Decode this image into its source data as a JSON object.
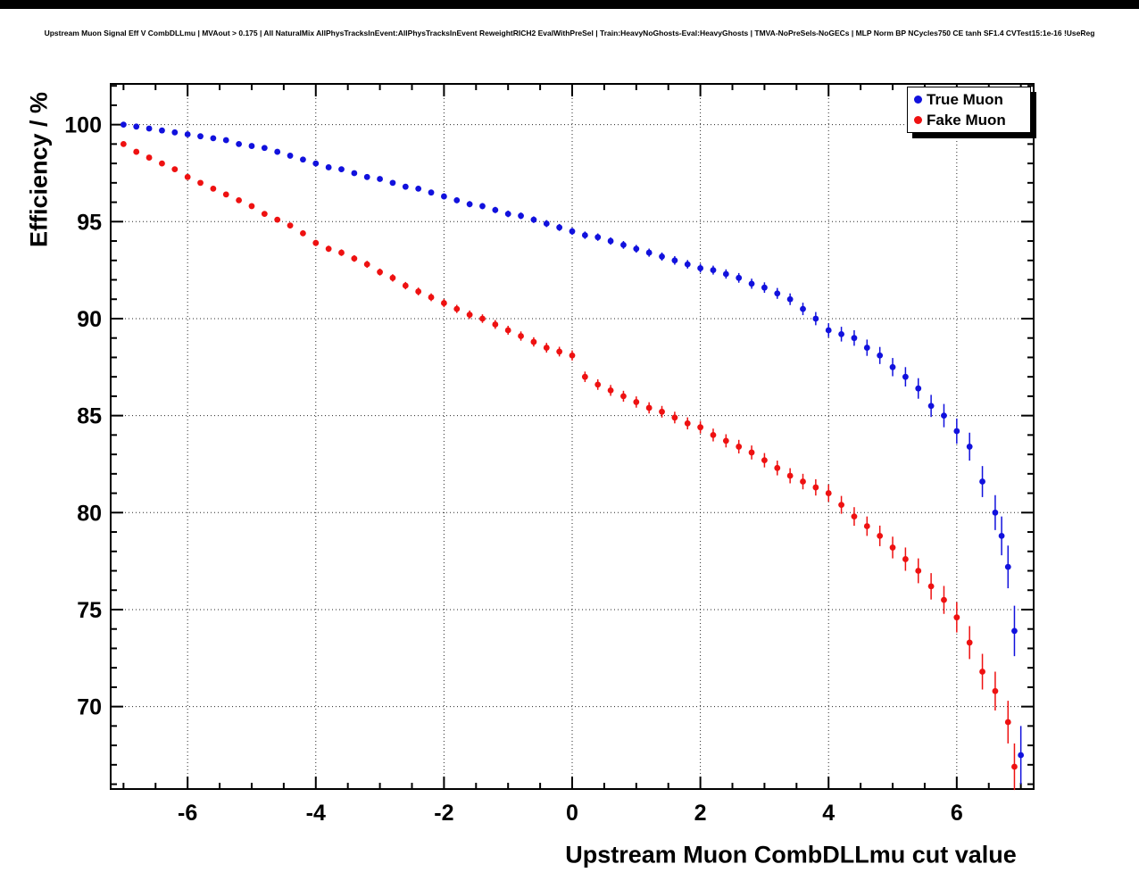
{
  "chart_data": {
    "type": "scatter",
    "title": "Upstream Muon Signal Eff V CombDLLmu | MVAout > 0.175 | All NaturalMix AllPhysTracksInEvent:AllPhysTracksInEvent ReweightRICH2 EvalWithPreSel | Train:HeavyNoGhosts-Eval:HeavyGhosts | TMVA-NoPreSels-NoGECs | MLP Norm BP NCycles750 CE tanh SF1.4 CVTest15:1e-16 !UseReg",
    "xlabel": "Upstream Muon CombDLLmu cut value",
    "ylabel": "Efficiency / %",
    "xlim": [
      -7.2,
      7.2
    ],
    "ylim": [
      65.75,
      102.1
    ],
    "xticks": [
      -6,
      -4,
      -2,
      0,
      2,
      4,
      6
    ],
    "yticks": [
      70,
      75,
      80,
      85,
      90,
      95,
      100
    ],
    "x_minor_step": 0.5,
    "y_minor_step": 1,
    "grid": true,
    "legend_position": "top-right",
    "series": [
      {
        "name": "True Muon",
        "color": "#1111dd",
        "points": [
          [
            -7.0,
            100.0,
            0.05
          ],
          [
            -6.8,
            99.9,
            0.05
          ],
          [
            -6.6,
            99.8,
            0.06
          ],
          [
            -6.4,
            99.7,
            0.06
          ],
          [
            -6.2,
            99.6,
            0.07
          ],
          [
            -6.0,
            99.5,
            0.07
          ],
          [
            -5.8,
            99.4,
            0.08
          ],
          [
            -5.6,
            99.3,
            0.08
          ],
          [
            -5.4,
            99.2,
            0.09
          ],
          [
            -5.2,
            99.0,
            0.09
          ],
          [
            -5.0,
            98.9,
            0.1
          ],
          [
            -4.8,
            98.8,
            0.1
          ],
          [
            -4.6,
            98.6,
            0.1
          ],
          [
            -4.4,
            98.4,
            0.11
          ],
          [
            -4.2,
            98.2,
            0.11
          ],
          [
            -4.0,
            98.0,
            0.12
          ],
          [
            -3.8,
            97.8,
            0.12
          ],
          [
            -3.6,
            97.7,
            0.12
          ],
          [
            -3.4,
            97.5,
            0.13
          ],
          [
            -3.2,
            97.3,
            0.13
          ],
          [
            -3.0,
            97.2,
            0.13
          ],
          [
            -2.8,
            97.0,
            0.14
          ],
          [
            -2.6,
            96.8,
            0.14
          ],
          [
            -2.4,
            96.7,
            0.14
          ],
          [
            -2.2,
            96.5,
            0.15
          ],
          [
            -2.0,
            96.3,
            0.15
          ],
          [
            -1.8,
            96.1,
            0.15
          ],
          [
            -1.6,
            95.9,
            0.16
          ],
          [
            -1.4,
            95.8,
            0.16
          ],
          [
            -1.2,
            95.6,
            0.16
          ],
          [
            -1.0,
            95.4,
            0.17
          ],
          [
            -0.8,
            95.3,
            0.17
          ],
          [
            -0.6,
            95.1,
            0.17
          ],
          [
            -0.4,
            94.9,
            0.18
          ],
          [
            -0.2,
            94.7,
            0.18
          ],
          [
            0.0,
            94.5,
            0.18
          ],
          [
            0.2,
            94.3,
            0.19
          ],
          [
            0.4,
            94.2,
            0.19
          ],
          [
            0.6,
            94.0,
            0.19
          ],
          [
            0.8,
            93.8,
            0.2
          ],
          [
            1.0,
            93.6,
            0.2
          ],
          [
            1.2,
            93.4,
            0.21
          ],
          [
            1.4,
            93.2,
            0.21
          ],
          [
            1.6,
            93.0,
            0.22
          ],
          [
            1.8,
            92.8,
            0.22
          ],
          [
            2.0,
            92.6,
            0.23
          ],
          [
            2.2,
            92.5,
            0.23
          ],
          [
            2.4,
            92.3,
            0.24
          ],
          [
            2.6,
            92.1,
            0.25
          ],
          [
            2.8,
            91.8,
            0.26
          ],
          [
            3.0,
            91.6,
            0.27
          ],
          [
            3.2,
            91.3,
            0.28
          ],
          [
            3.4,
            91.0,
            0.3
          ],
          [
            3.6,
            90.5,
            0.32
          ],
          [
            3.8,
            90.0,
            0.34
          ],
          [
            4.0,
            89.4,
            0.36
          ],
          [
            4.2,
            89.2,
            0.38
          ],
          [
            4.4,
            89.0,
            0.4
          ],
          [
            4.6,
            88.5,
            0.42
          ],
          [
            4.8,
            88.1,
            0.44
          ],
          [
            5.0,
            87.5,
            0.47
          ],
          [
            5.2,
            87.0,
            0.5
          ],
          [
            5.4,
            86.4,
            0.53
          ],
          [
            5.6,
            85.5,
            0.57
          ],
          [
            5.8,
            85.0,
            0.6
          ],
          [
            6.0,
            84.2,
            0.65
          ],
          [
            6.2,
            83.4,
            0.72
          ],
          [
            6.4,
            81.6,
            0.8
          ],
          [
            6.6,
            80.0,
            0.9
          ],
          [
            6.7,
            78.8,
            1.0
          ],
          [
            6.8,
            77.2,
            1.1
          ],
          [
            6.9,
            73.9,
            1.3
          ],
          [
            7.0,
            67.5,
            1.5
          ]
        ]
      },
      {
        "name": "Fake Muon",
        "color": "#ee1111",
        "points": [
          [
            -7.0,
            99.0,
            0.08
          ],
          [
            -6.8,
            98.6,
            0.09
          ],
          [
            -6.6,
            98.3,
            0.09
          ],
          [
            -6.4,
            98.0,
            0.1
          ],
          [
            -6.2,
            97.7,
            0.1
          ],
          [
            -6.0,
            97.3,
            0.11
          ],
          [
            -5.8,
            97.0,
            0.11
          ],
          [
            -5.6,
            96.7,
            0.12
          ],
          [
            -5.4,
            96.4,
            0.12
          ],
          [
            -5.2,
            96.1,
            0.13
          ],
          [
            -5.0,
            95.8,
            0.13
          ],
          [
            -4.8,
            95.4,
            0.14
          ],
          [
            -4.6,
            95.1,
            0.14
          ],
          [
            -4.4,
            94.8,
            0.15
          ],
          [
            -4.2,
            94.4,
            0.15
          ],
          [
            -4.0,
            93.9,
            0.16
          ],
          [
            -3.8,
            93.6,
            0.16
          ],
          [
            -3.6,
            93.4,
            0.17
          ],
          [
            -3.4,
            93.1,
            0.17
          ],
          [
            -3.2,
            92.8,
            0.18
          ],
          [
            -3.0,
            92.4,
            0.18
          ],
          [
            -2.8,
            92.1,
            0.19
          ],
          [
            -2.6,
            91.7,
            0.19
          ],
          [
            -2.4,
            91.4,
            0.2
          ],
          [
            -2.2,
            91.1,
            0.2
          ],
          [
            -2.0,
            90.8,
            0.21
          ],
          [
            -1.8,
            90.5,
            0.21
          ],
          [
            -1.6,
            90.2,
            0.22
          ],
          [
            -1.4,
            90.0,
            0.22
          ],
          [
            -1.2,
            89.7,
            0.23
          ],
          [
            -1.0,
            89.4,
            0.23
          ],
          [
            -0.8,
            89.1,
            0.24
          ],
          [
            -0.6,
            88.8,
            0.24
          ],
          [
            -0.4,
            88.5,
            0.25
          ],
          [
            -0.2,
            88.3,
            0.25
          ],
          [
            0.0,
            88.1,
            0.26
          ],
          [
            0.2,
            87.0,
            0.27
          ],
          [
            0.4,
            86.6,
            0.27
          ],
          [
            0.6,
            86.3,
            0.28
          ],
          [
            0.8,
            86.0,
            0.28
          ],
          [
            1.0,
            85.7,
            0.29
          ],
          [
            1.2,
            85.4,
            0.29
          ],
          [
            1.4,
            85.2,
            0.3
          ],
          [
            1.6,
            84.9,
            0.3
          ],
          [
            1.8,
            84.6,
            0.31
          ],
          [
            2.0,
            84.4,
            0.32
          ],
          [
            2.2,
            84.0,
            0.33
          ],
          [
            2.4,
            83.7,
            0.34
          ],
          [
            2.6,
            83.4,
            0.35
          ],
          [
            2.8,
            83.1,
            0.36
          ],
          [
            3.0,
            82.7,
            0.37
          ],
          [
            3.2,
            82.3,
            0.38
          ],
          [
            3.4,
            81.9,
            0.39
          ],
          [
            3.6,
            81.6,
            0.4
          ],
          [
            3.8,
            81.3,
            0.42
          ],
          [
            4.0,
            81.0,
            0.44
          ],
          [
            4.2,
            80.4,
            0.46
          ],
          [
            4.4,
            79.8,
            0.48
          ],
          [
            4.6,
            79.3,
            0.5
          ],
          [
            4.8,
            78.8,
            0.53
          ],
          [
            5.0,
            78.2,
            0.56
          ],
          [
            5.2,
            77.6,
            0.6
          ],
          [
            5.4,
            77.0,
            0.64
          ],
          [
            5.6,
            76.2,
            0.68
          ],
          [
            5.8,
            75.5,
            0.72
          ],
          [
            6.0,
            74.6,
            0.78
          ],
          [
            6.2,
            73.3,
            0.85
          ],
          [
            6.4,
            71.8,
            0.92
          ],
          [
            6.6,
            70.8,
            1.0
          ],
          [
            6.8,
            69.2,
            1.1
          ],
          [
            6.9,
            66.9,
            1.2
          ]
        ]
      }
    ]
  }
}
